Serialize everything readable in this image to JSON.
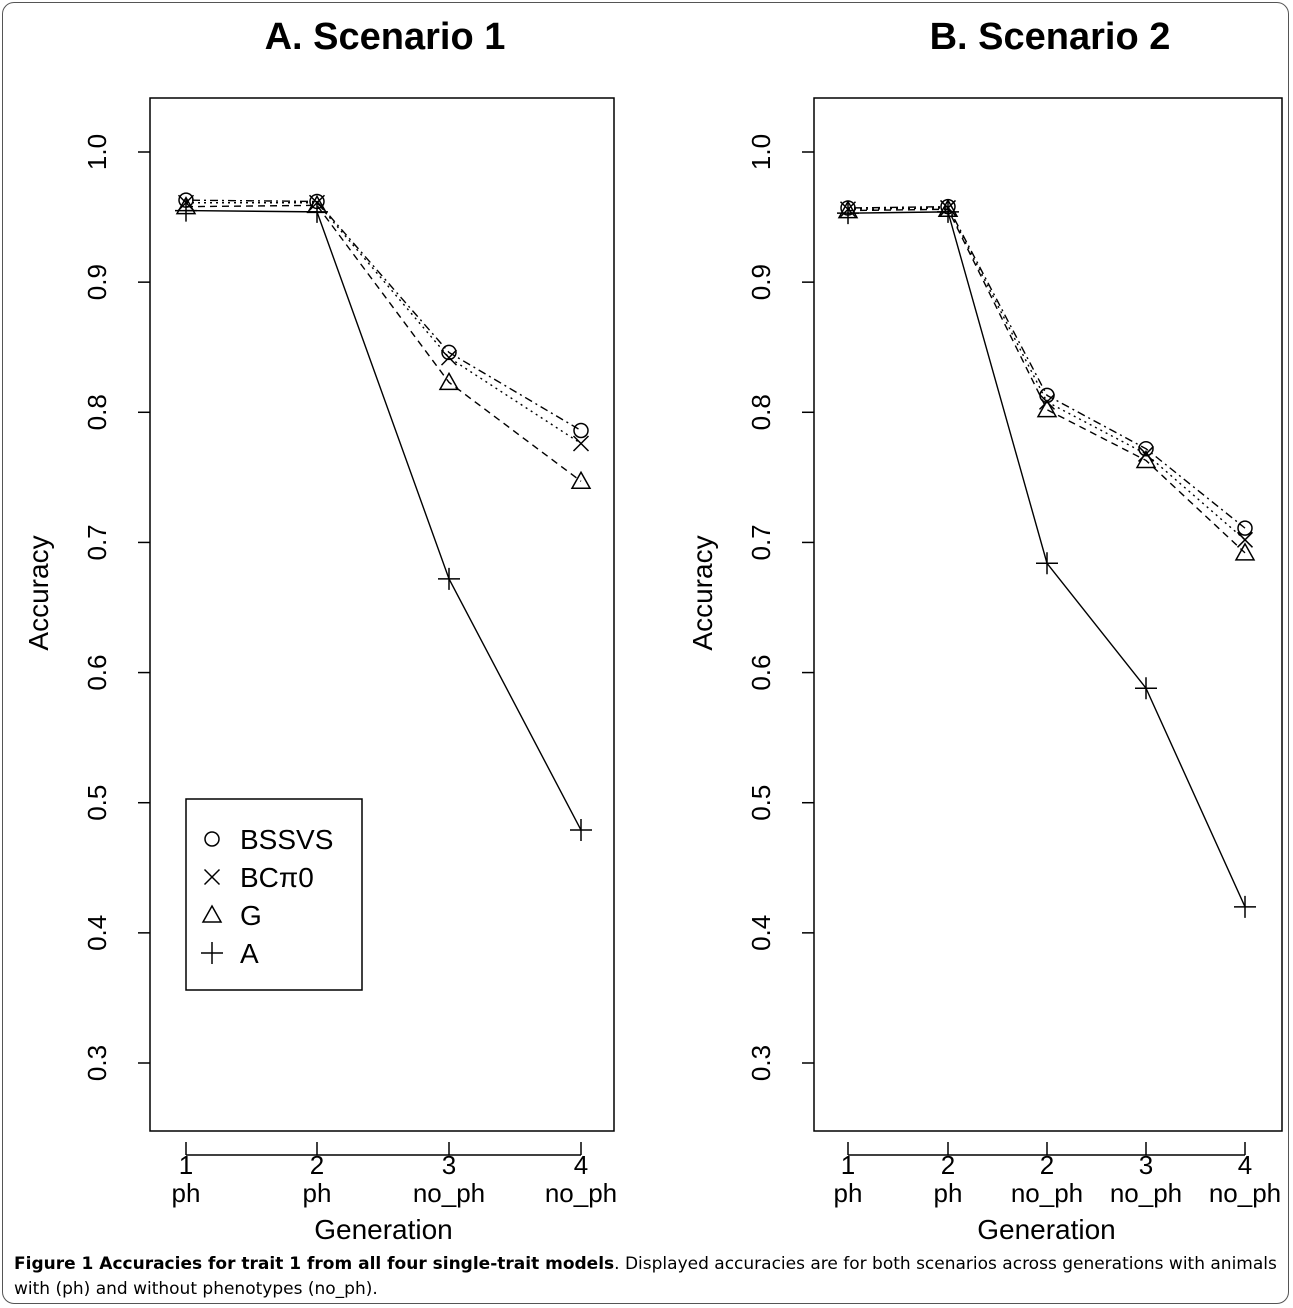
{
  "chart_data": [
    {
      "type": "line",
      "title": "A. Scenario 1",
      "xlabel": "Generation",
      "ylabel": "Accuracy",
      "ylim": [
        0.3,
        1.0
      ],
      "yticks": [
        "0.3",
        "0.4",
        "0.5",
        "0.6",
        "0.7",
        "0.8",
        "0.9",
        "1.0"
      ],
      "categories": [
        {
          "top": "1",
          "bottom": "ph"
        },
        {
          "top": "2",
          "bottom": "ph"
        },
        {
          "top": "3",
          "bottom": "no_ph"
        },
        {
          "top": "4",
          "bottom": "no_ph"
        }
      ],
      "series": [
        {
          "name": "BSSVS",
          "marker": "circle",
          "line": "dotdash",
          "values": [
            0.963,
            0.962,
            0.846,
            0.786
          ]
        },
        {
          "name": "BCπ0",
          "marker": "cross",
          "line": "dotted",
          "values": [
            0.961,
            0.961,
            0.842,
            0.776
          ]
        },
        {
          "name": "G",
          "marker": "triangle",
          "line": "dashed",
          "values": [
            0.958,
            0.959,
            0.823,
            0.747
          ]
        },
        {
          "name": "A",
          "marker": "plus",
          "line": "solid",
          "values": [
            0.955,
            0.954,
            0.672,
            0.479
          ]
        }
      ],
      "legend": "bottom-left"
    },
    {
      "type": "line",
      "title": "B. Scenario 2",
      "xlabel": "Generation",
      "ylabel": "Accuracy",
      "ylim": [
        0.3,
        1.0
      ],
      "yticks": [
        "0.3",
        "0.4",
        "0.5",
        "0.6",
        "0.7",
        "0.8",
        "0.9",
        "1.0"
      ],
      "categories": [
        {
          "top": "1",
          "bottom": "ph"
        },
        {
          "top": "2",
          "bottom": "ph"
        },
        {
          "top": "2",
          "bottom": "no_ph"
        },
        {
          "top": "3",
          "bottom": "no_ph"
        },
        {
          "top": "4",
          "bottom": "no_ph"
        }
      ],
      "series": [
        {
          "name": "BSSVS",
          "marker": "circle",
          "line": "dotdash",
          "values": [
            0.957,
            0.958,
            0.813,
            0.772,
            0.711
          ]
        },
        {
          "name": "BCπ0",
          "marker": "cross",
          "line": "dotted",
          "values": [
            0.956,
            0.957,
            0.808,
            0.768,
            0.702
          ]
        },
        {
          "name": "G",
          "marker": "triangle",
          "line": "dashed",
          "values": [
            0.955,
            0.956,
            0.802,
            0.763,
            0.692
          ]
        },
        {
          "name": "A",
          "marker": "plus",
          "line": "solid",
          "values": [
            0.953,
            0.954,
            0.684,
            0.588,
            0.42
          ]
        }
      ]
    }
  ],
  "caption": {
    "bold": "Figure 1 Accuracies for trait 1 from all four single-trait models",
    "rest": ". Displayed accuracies are for both scenarios across generations with animals with (ph) and without phenotypes (no_ph)."
  }
}
